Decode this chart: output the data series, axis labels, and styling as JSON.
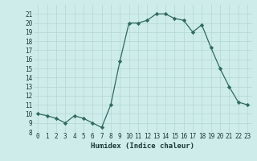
{
  "x": [
    0,
    1,
    2,
    3,
    4,
    5,
    6,
    7,
    8,
    9,
    10,
    11,
    12,
    13,
    14,
    15,
    16,
    17,
    18,
    19,
    20,
    21,
    22,
    23
  ],
  "y": [
    10,
    9.8,
    9.5,
    9,
    9.8,
    9.5,
    9,
    8.5,
    11,
    15.8,
    20,
    20,
    20.3,
    21,
    21,
    20.5,
    20.3,
    19,
    19.8,
    17.3,
    15,
    13,
    11.3,
    11
  ],
  "line_color": "#2e6b5e",
  "marker": "D",
  "marker_size": 2.2,
  "bg_color": "#ceecea",
  "grid_color": "#b8dbd8",
  "xlabel": "Humidex (Indice chaleur)",
  "xlim": [
    -0.5,
    23.5
  ],
  "ylim": [
    8,
    22
  ],
  "xticks": [
    0,
    1,
    2,
    3,
    4,
    5,
    6,
    7,
    8,
    9,
    10,
    11,
    12,
    13,
    14,
    15,
    16,
    17,
    18,
    19,
    20,
    21,
    22,
    23
  ],
  "yticks": [
    8,
    9,
    10,
    11,
    12,
    13,
    14,
    15,
    16,
    17,
    18,
    19,
    20,
    21
  ],
  "xtick_labels": [
    "0",
    "1",
    "2",
    "3",
    "4",
    "5",
    "6",
    "7",
    "8",
    "9",
    "10",
    "11",
    "12",
    "13",
    "14",
    "15",
    "16",
    "17",
    "18",
    "19",
    "20",
    "21",
    "22",
    "23"
  ],
  "ytick_labels": [
    "8",
    "9",
    "10",
    "11",
    "12",
    "13",
    "14",
    "15",
    "16",
    "17",
    "18",
    "19",
    "20",
    "21"
  ],
  "tick_fontsize": 5.5,
  "xlabel_fontsize": 6.5,
  "line_width": 0.9
}
